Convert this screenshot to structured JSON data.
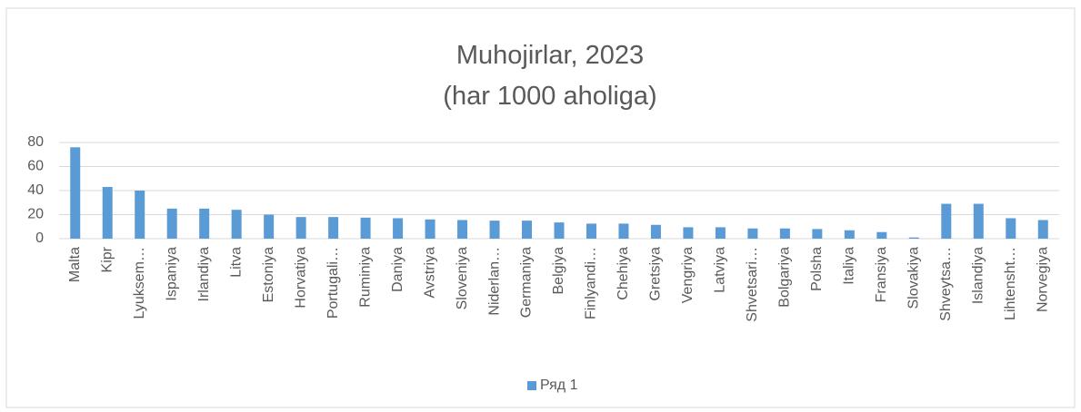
{
  "chart_data": {
    "type": "bar",
    "title": [
      "Muhojirlar, 2023",
      "(har 1000 aholiga)"
    ],
    "categories": [
      "Malta",
      "Kipr",
      "Lyuksem…",
      "Ispaniya",
      "Irlandiya",
      "Litva",
      "Estoniya",
      "Horvatiya",
      "Portugali…",
      "Ruminiya",
      "Daniya",
      "Avstriya",
      "Sloveniya",
      "Niderlan…",
      "Germaniya",
      "Belgiya",
      "Finlyandi…",
      "Chehiya",
      "Gretsiya",
      "Vengriya",
      "Latviya",
      "Shvetsari…",
      "Bolgariya",
      "Polsha",
      "Italiya",
      "Fransiya",
      "Slovakiya",
      "Shveytsa…",
      "Islandiya",
      "Lihtensht…",
      "Norvegiya"
    ],
    "series": [
      {
        "name": "Ряд 1",
        "color": "#5b9bd5",
        "values": [
          76,
          43,
          40,
          25,
          25,
          24,
          20,
          18,
          18,
          17.5,
          17,
          16,
          15.5,
          15,
          15,
          13.5,
          12.5,
          12.5,
          11.5,
          9.5,
          9.5,
          8.5,
          8.5,
          8,
          7,
          5.5,
          1,
          29,
          29,
          17,
          15.5
        ]
      }
    ],
    "ylim": [
      0,
      80
    ],
    "yticks": [
      0,
      20,
      40,
      60,
      80
    ],
    "grid": true,
    "legend": "bottom"
  }
}
